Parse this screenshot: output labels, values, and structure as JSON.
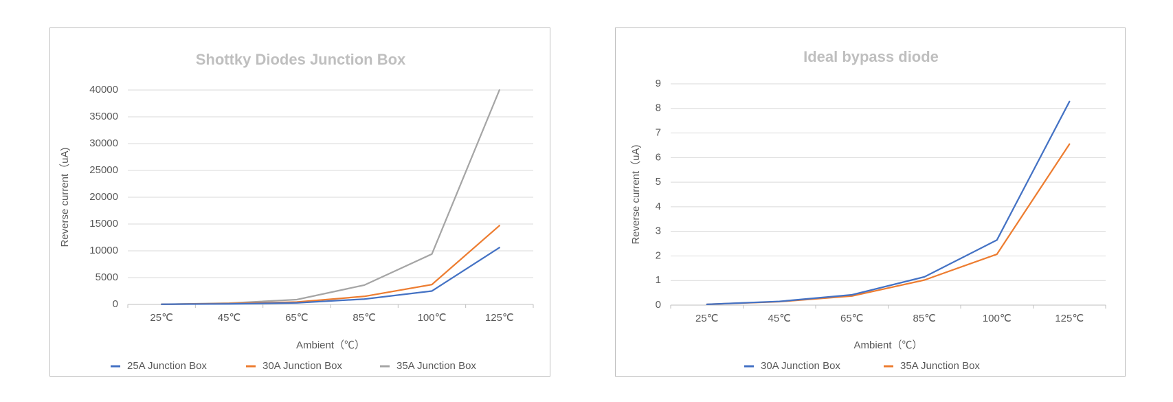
{
  "chart_data": [
    {
      "type": "line",
      "title": "Shottky Diodes Junction Box",
      "xlabel": "Ambient（℃）",
      "ylabel": "Reverse current（uA)",
      "categories": [
        "25℃",
        "45℃",
        "65℃",
        "85℃",
        "100℃",
        "125℃"
      ],
      "ylim": [
        0,
        40000
      ],
      "yticks": [
        0,
        5000,
        10000,
        15000,
        20000,
        25000,
        30000,
        35000,
        40000
      ],
      "grid": true,
      "legend_position": "bottom",
      "series": [
        {
          "name": "25A Junction Box",
          "color": "#4472c4",
          "values": [
            20,
            100,
            300,
            1000,
            2500,
            10600
          ]
        },
        {
          "name": "30A Junction Box",
          "color": "#ed7d31",
          "values": [
            20,
            150,
            450,
            1500,
            3700,
            14700
          ]
        },
        {
          "name": "35A Junction Box",
          "color": "#a5a5a5",
          "values": [
            30,
            250,
            900,
            3600,
            9400,
            40000
          ]
        }
      ]
    },
    {
      "type": "line",
      "title": "Ideal bypass diode",
      "xlabel": "Ambient（℃）",
      "ylabel": "Reverse current（uA)",
      "categories": [
        "25℃",
        "45℃",
        "65℃",
        "85℃",
        "100℃",
        "125℃"
      ],
      "ylim": [
        0,
        9
      ],
      "yticks": [
        0,
        1,
        2,
        3,
        4,
        5,
        6,
        7,
        8,
        9
      ],
      "grid": true,
      "legend_position": "bottom",
      "series": [
        {
          "name": "30A Junction Box",
          "color": "#4472c4",
          "values": [
            0.03,
            0.15,
            0.42,
            1.15,
            2.65,
            8.28
          ]
        },
        {
          "name": "35A Junction Box",
          "color": "#ed7d31",
          "values": [
            0.03,
            0.14,
            0.37,
            1.02,
            2.07,
            6.55
          ]
        }
      ]
    }
  ]
}
